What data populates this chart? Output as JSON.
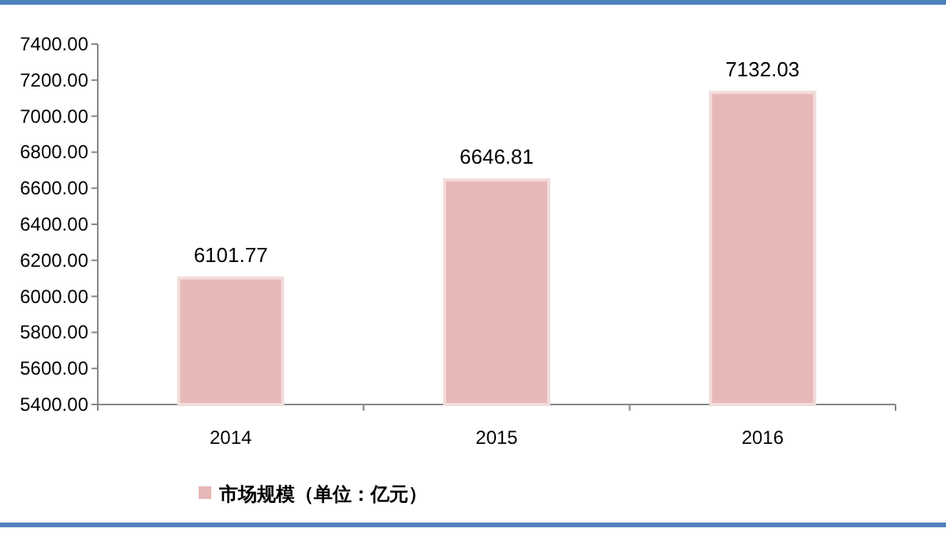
{
  "chart_data": {
    "type": "bar",
    "categories": [
      "2014",
      "2015",
      "2016"
    ],
    "series": [
      {
        "name": "市场规模（单位：亿元）",
        "color": "#e6b9b8",
        "values": [
          6101.77,
          6646.81,
          7132.03
        ]
      }
    ],
    "ylim": [
      5400,
      7400
    ],
    "yticks": [
      {
        "value": 5400,
        "label": "5400.00"
      },
      {
        "value": 5600,
        "label": "5600.00"
      },
      {
        "value": 5800,
        "label": "5800.00"
      },
      {
        "value": 6000,
        "label": "6000.00"
      },
      {
        "value": 6200,
        "label": "6200.00"
      },
      {
        "value": 6400,
        "label": "6400.00"
      },
      {
        "value": 6600,
        "label": "6600.00"
      },
      {
        "value": 6800,
        "label": "6800.00"
      },
      {
        "value": 7000,
        "label": "7000.00"
      },
      {
        "value": 7200,
        "label": "7200.00"
      },
      {
        "value": 7400,
        "label": "7400.00"
      }
    ],
    "data_labels": true,
    "legend": "bottom left",
    "grid": false
  }
}
